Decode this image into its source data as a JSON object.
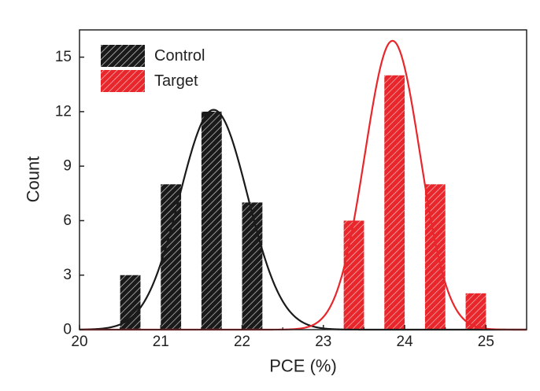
{
  "chart_data": {
    "type": "bar",
    "xlabel": "PCE (%)",
    "ylabel": "Count",
    "xlim": [
      20,
      25.5
    ],
    "ylim": [
      0,
      16.5
    ],
    "xticks": [
      "20",
      "21",
      "22",
      "23",
      "24",
      "25"
    ],
    "yticks": [
      "0",
      "3",
      "6",
      "9",
      "12",
      "15"
    ],
    "bar_width": 0.25,
    "legend_position": "top-left",
    "series": [
      {
        "name": "Control",
        "color": "#1a1a1a",
        "bins": [
          20.625,
          21.125,
          21.625,
          22.125
        ],
        "values": [
          3,
          8,
          12,
          7
        ],
        "fit": {
          "type": "gaussian",
          "mean": 21.65,
          "sigma": 0.42,
          "amplitude": 12.1
        }
      },
      {
        "name": "Target",
        "color": "#e8262b",
        "bins": [
          23.375,
          23.875,
          24.375,
          24.875
        ],
        "values": [
          6,
          14,
          8,
          2
        ],
        "fit": {
          "type": "gaussian",
          "mean": 23.85,
          "sigma": 0.34,
          "amplitude": 15.9
        }
      }
    ]
  }
}
